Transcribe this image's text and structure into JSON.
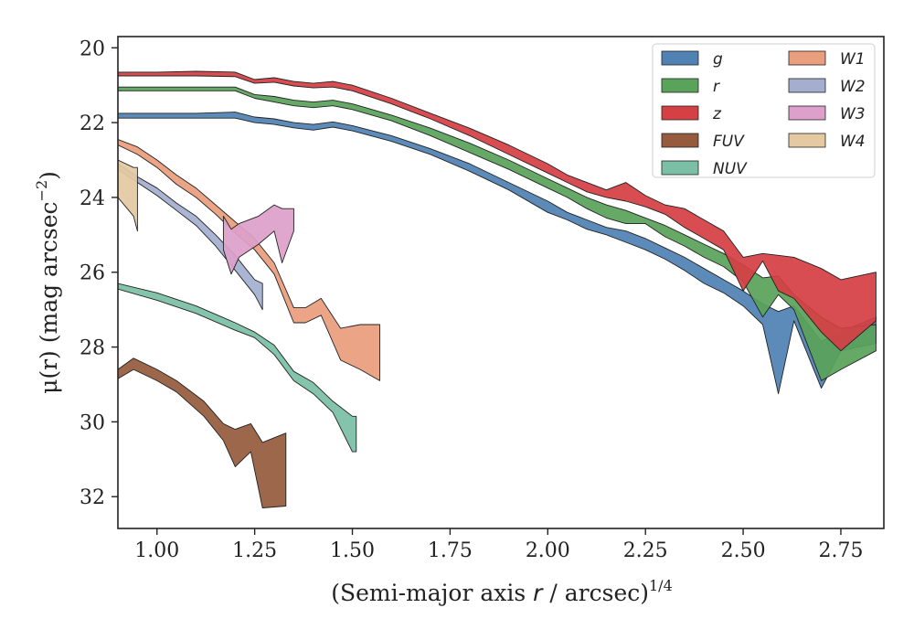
{
  "chart_data": {
    "type": "area",
    "title": "",
    "xlabel_main": "(Semi-major axis ",
    "xlabel_var": "r",
    "xlabel_rest": " / arcsec)",
    "xlabel_sup": "1/4",
    "ylabel_main": "μ(r) (mag arcsec",
    "ylabel_sup": "−2",
    "ylabel_close": ")",
    "xlim": [
      0.9,
      2.86
    ],
    "ylim": [
      32.85,
      19.7
    ],
    "yinverted": true,
    "xticks": [
      1.0,
      1.25,
      1.5,
      1.75,
      2.0,
      2.25,
      2.5,
      2.75
    ],
    "xtick_labels": [
      "1.00",
      "1.25",
      "1.50",
      "1.75",
      "2.00",
      "2.25",
      "2.50",
      "2.75"
    ],
    "yticks": [
      20,
      22,
      24,
      26,
      28,
      30,
      32
    ],
    "ytick_labels": [
      "20",
      "22",
      "24",
      "26",
      "28",
      "30",
      "32"
    ],
    "legend_position": "top-right",
    "series": [
      {
        "name": "g",
        "color": "#5082b4",
        "x": [
          0.9,
          1.0,
          1.1,
          1.2,
          1.25,
          1.3,
          1.35,
          1.4,
          1.45,
          1.5,
          1.6,
          1.7,
          1.8,
          1.9,
          2.0,
          2.05,
          2.1,
          2.15,
          2.2,
          2.25,
          2.3,
          2.35,
          2.4,
          2.45,
          2.5,
          2.55,
          2.59,
          2.63,
          2.7,
          2.75,
          2.84
        ],
        "lower": [
          21.75,
          21.75,
          21.75,
          21.72,
          21.85,
          21.9,
          22.0,
          22.05,
          21.98,
          22.08,
          22.35,
          22.7,
          23.1,
          23.6,
          24.1,
          24.4,
          24.6,
          24.8,
          24.9,
          25.1,
          25.35,
          25.6,
          25.9,
          26.2,
          26.5,
          26.85,
          27.05,
          26.9,
          27.85,
          27.6,
          27.2
        ],
        "upper": [
          21.88,
          21.88,
          21.88,
          21.88,
          22.0,
          22.05,
          22.14,
          22.2,
          22.12,
          22.22,
          22.5,
          22.85,
          23.3,
          23.8,
          24.4,
          24.6,
          24.85,
          25.0,
          25.2,
          25.4,
          25.65,
          25.95,
          26.3,
          26.55,
          26.9,
          27.4,
          29.25,
          27.3,
          29.1,
          28.1,
          27.9
        ]
      },
      {
        "name": "r",
        "color": "#5aa35a",
        "x": [
          0.9,
          1.0,
          1.1,
          1.2,
          1.25,
          1.3,
          1.35,
          1.4,
          1.45,
          1.5,
          1.6,
          1.7,
          1.8,
          1.9,
          2.0,
          2.05,
          2.1,
          2.15,
          2.2,
          2.25,
          2.3,
          2.35,
          2.4,
          2.45,
          2.5,
          2.55,
          2.59,
          2.63,
          2.7,
          2.75,
          2.84
        ],
        "lower": [
          21.05,
          21.05,
          21.05,
          21.05,
          21.25,
          21.3,
          21.4,
          21.45,
          21.4,
          21.5,
          21.8,
          22.15,
          22.55,
          23.0,
          23.5,
          23.75,
          24.0,
          24.2,
          24.35,
          24.55,
          24.75,
          25.0,
          25.25,
          25.5,
          25.8,
          26.15,
          26.1,
          26.6,
          27.2,
          27.5,
          27.4
        ],
        "upper": [
          21.15,
          21.15,
          21.15,
          21.15,
          21.35,
          21.45,
          21.55,
          21.6,
          21.55,
          21.65,
          21.95,
          22.35,
          22.8,
          23.25,
          23.75,
          24.0,
          24.3,
          24.55,
          24.7,
          24.7,
          25.05,
          25.3,
          25.6,
          25.85,
          26.25,
          27.2,
          26.6,
          27.0,
          28.9,
          28.6,
          28.1
        ]
      },
      {
        "name": "z",
        "color": "#d44044",
        "x": [
          0.9,
          1.0,
          1.1,
          1.2,
          1.25,
          1.3,
          1.35,
          1.4,
          1.45,
          1.5,
          1.6,
          1.7,
          1.8,
          1.9,
          2.0,
          2.05,
          2.1,
          2.15,
          2.2,
          2.25,
          2.3,
          2.35,
          2.4,
          2.45,
          2.5,
          2.55,
          2.59,
          2.63,
          2.7,
          2.75,
          2.84
        ],
        "lower": [
          20.65,
          20.65,
          20.63,
          20.65,
          20.85,
          20.8,
          20.9,
          20.95,
          20.9,
          21.0,
          21.35,
          21.75,
          22.15,
          22.6,
          23.1,
          23.4,
          23.6,
          23.8,
          23.6,
          23.95,
          24.2,
          24.3,
          24.6,
          24.9,
          25.6,
          25.5,
          25.55,
          25.6,
          25.9,
          26.2,
          26.0
        ],
        "upper": [
          20.75,
          20.75,
          20.75,
          20.77,
          20.95,
          20.92,
          21.02,
          21.07,
          21.05,
          21.15,
          21.5,
          21.9,
          22.35,
          22.85,
          23.35,
          23.6,
          23.85,
          24.0,
          24.1,
          24.25,
          24.45,
          24.8,
          25.1,
          25.4,
          26.5,
          25.7,
          26.5,
          26.7,
          27.6,
          28.1,
          27.3
        ]
      },
      {
        "name": "FUV",
        "color": "#955b3c",
        "x": [
          0.9,
          0.94,
          1.0,
          1.05,
          1.12,
          1.17,
          1.2,
          1.24,
          1.27,
          1.33
        ],
        "lower": [
          28.6,
          28.3,
          28.6,
          28.9,
          29.45,
          30.05,
          30.2,
          30.05,
          30.55,
          30.3
        ],
        "upper": [
          28.85,
          28.6,
          28.9,
          29.2,
          29.85,
          30.5,
          31.2,
          30.8,
          32.3,
          32.25
        ]
      },
      {
        "name": "NUV",
        "color": "#7bbfa6",
        "x": [
          0.9,
          1.0,
          1.1,
          1.2,
          1.25,
          1.3,
          1.35,
          1.4,
          1.45,
          1.5,
          1.51
        ],
        "lower": [
          26.3,
          26.55,
          26.9,
          27.35,
          27.6,
          27.95,
          28.65,
          28.95,
          29.45,
          29.85,
          29.85
        ],
        "upper": [
          26.45,
          26.75,
          27.1,
          27.55,
          27.75,
          28.2,
          28.9,
          29.25,
          29.75,
          30.8,
          30.8
        ]
      },
      {
        "name": "W1",
        "color": "#e99e7d",
        "x": [
          0.9,
          0.95,
          1.0,
          1.05,
          1.1,
          1.15,
          1.2,
          1.25,
          1.3,
          1.35,
          1.38,
          1.42,
          1.47,
          1.52,
          1.57
        ],
        "lower": [
          22.45,
          22.65,
          23.0,
          23.4,
          23.75,
          24.2,
          24.65,
          25.1,
          25.75,
          26.95,
          26.95,
          26.7,
          27.5,
          27.4,
          27.4
        ],
        "upper": [
          22.6,
          22.85,
          23.2,
          23.65,
          24.0,
          24.45,
          24.95,
          25.4,
          26.05,
          27.35,
          27.35,
          27.15,
          28.35,
          28.6,
          28.9
        ]
      },
      {
        "name": "W2",
        "color": "#a4afd0",
        "x": [
          0.9,
          0.95,
          1.0,
          1.05,
          1.1,
          1.15,
          1.2,
          1.25,
          1.27
        ],
        "lower": [
          23.1,
          23.45,
          23.75,
          24.15,
          24.5,
          25.0,
          25.55,
          26.2,
          26.3
        ],
        "upper": [
          23.25,
          23.6,
          23.95,
          24.35,
          24.75,
          25.3,
          25.95,
          26.6,
          27.0
        ]
      },
      {
        "name": "W3",
        "color": "#dda0ca",
        "x": [
          1.17,
          1.19,
          1.21,
          1.26,
          1.3,
          1.32,
          1.35
        ],
        "lower": [
          24.5,
          24.85,
          24.7,
          24.5,
          24.2,
          24.3,
          24.3
        ],
        "upper": [
          25.4,
          26.05,
          25.6,
          25.25,
          24.9,
          25.75,
          24.9
        ]
      },
      {
        "name": "W4",
        "color": "#e4c9a2",
        "x": [
          0.9,
          0.94,
          0.95
        ],
        "lower": [
          23.0,
          23.2,
          23.2
        ],
        "upper": [
          24.0,
          24.5,
          24.9
        ]
      }
    ]
  }
}
